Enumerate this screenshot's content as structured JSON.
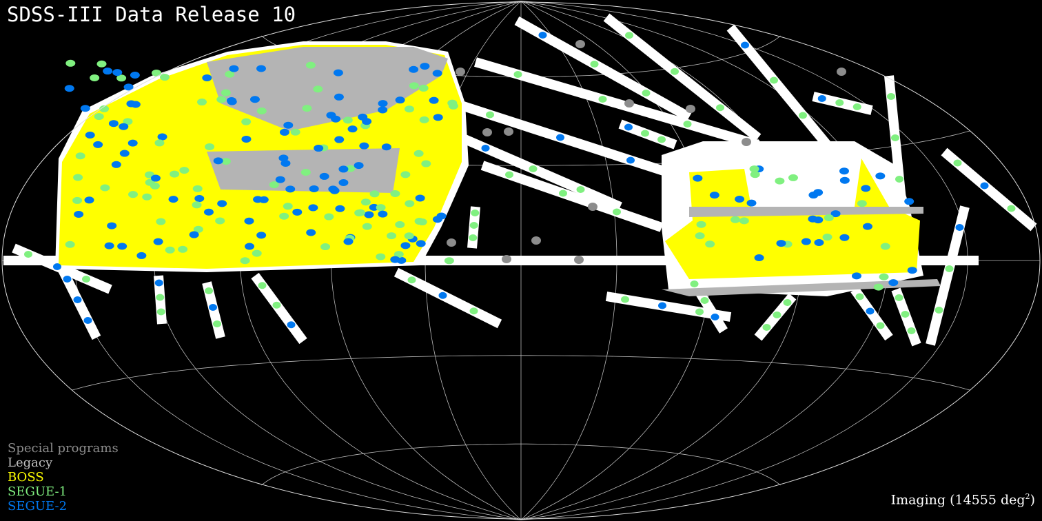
{
  "title": "SDSS-III Data Release 10",
  "projection": "aitoff-hammer",
  "grid": true,
  "legend": [
    {
      "label": "Special programs",
      "color": "#8c8c8c"
    },
    {
      "label": "Legacy",
      "color": "#c0c0c0"
    },
    {
      "label": "BOSS",
      "color": "#ffff00"
    },
    {
      "label": "SEGUE-1",
      "color": "#80f080"
    },
    {
      "label": "SEGUE-2",
      "color": "#0078f0"
    }
  ],
  "imaging": {
    "prefix": "Imaging (14555 deg",
    "sup": "2",
    "suffix": ")",
    "color": "#ffffff"
  }
}
